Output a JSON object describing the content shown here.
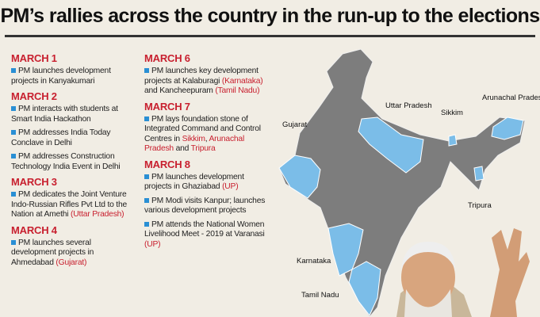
{
  "title": "PM’s rallies across the country in the run-up to the elections",
  "highlight_color": "#c8202f",
  "columns": [
    [
      {
        "date": "MARCH 1",
        "items": [
          [
            {
              "text": "PM launches development projects in Kanyakumari"
            }
          ]
        ]
      },
      {
        "date": "MARCH 2",
        "items": [
          [
            {
              "text": "PM interacts with students at Smart India Hackathon"
            }
          ],
          [
            {
              "text": "PM addresses India Today Conclave in Delhi"
            }
          ],
          [
            {
              "text": "PM addresses Construction Technology India Event in Delhi"
            }
          ]
        ]
      },
      {
        "date": "MARCH 3",
        "items": [
          [
            {
              "text": "PM dedicates the Joint Venture Indo-Russian Rifles Pvt Ltd to the Nation at Amethi "
            },
            {
              "text": "(Uttar Pradesh)",
              "highlight": true
            }
          ]
        ]
      },
      {
        "date": "MARCH 4",
        "items": [
          [
            {
              "text": "PM launches several development projects in Ahmedabad "
            },
            {
              "text": "(Gujarat)",
              "highlight": true
            }
          ]
        ]
      }
    ],
    [
      {
        "date": "MARCH 6",
        "items": [
          [
            {
              "text": "PM launches key development projects at Kalaburagi "
            },
            {
              "text": "(Karnataka)",
              "highlight": true
            },
            {
              "text": " and Kancheepuram "
            },
            {
              "text": "(Tamil Nadu)",
              "highlight": true
            }
          ]
        ]
      },
      {
        "date": "MARCH 7",
        "items": [
          [
            {
              "text": "PM lays foundation stone of Integrated Command and Control Centres in "
            },
            {
              "text": "Sikkim",
              "highlight": true
            },
            {
              "text": ", "
            },
            {
              "text": "Arunachal Pradesh",
              "highlight": true
            },
            {
              "text": " and "
            },
            {
              "text": "Tripura",
              "highlight": true
            }
          ]
        ]
      },
      {
        "date": "MARCH 8",
        "items": [
          [
            {
              "text": "PM launches development projects in Ghaziabad "
            },
            {
              "text": "(UP)",
              "highlight": true
            }
          ],
          [
            {
              "text": "PM Modi visits Kanpur; launches various development projects"
            }
          ],
          [
            {
              "text": "PM attends the National Women Livelihood Meet - 2019 at Varanasi "
            },
            {
              "text": "(UP)",
              "highlight": true
            }
          ]
        ]
      }
    ]
  ],
  "map_labels": {
    "gujarat": "Gujarat",
    "uttar_pradesh": "Uttar Pradesh",
    "sikkim": "Sikkim",
    "arunachal": "Arunachal Pradesh",
    "tripura": "Tripura",
    "karnataka": "Karnataka",
    "tamil_nadu": "Tamil Nadu"
  }
}
